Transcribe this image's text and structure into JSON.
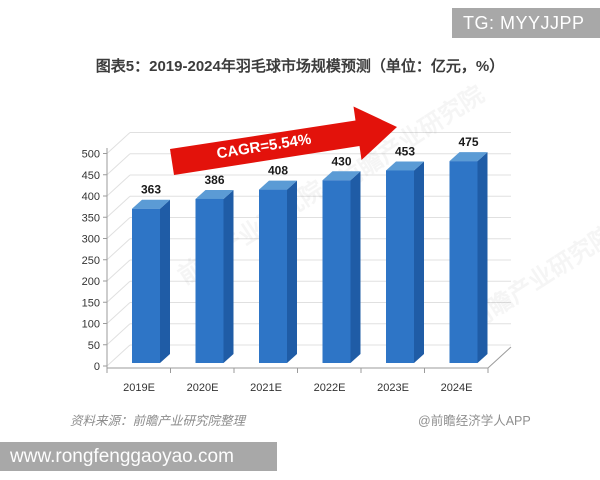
{
  "overlay": {
    "tg_badge": "TG: MYYJJPP",
    "site_banner": "www.rongfenggaoyao.com"
  },
  "header": {
    "title": "图表5：2019-2024年羽毛球市场规模预测（单位：亿元，%）"
  },
  "footer": {
    "source": "资料来源：前瞻产业研究院整理",
    "credit": "@前瞻经济学人APP"
  },
  "chart_data": {
    "type": "bar",
    "style": "3d-column",
    "title": "图表5：2019-2024年羽毛球市场规模预测（单位：亿元，%）",
    "categories": [
      "2019E",
      "2020E",
      "2021E",
      "2022E",
      "2023E",
      "2024E"
    ],
    "values": [
      363,
      386,
      408,
      430,
      453,
      475
    ],
    "annotation": "CAGR=5.54%",
    "xlabel": "",
    "ylabel": "",
    "ylim": [
      0,
      500
    ],
    "ytick_step": 50,
    "grid": true,
    "legend": "none",
    "watermark": "前瞻产业研究院",
    "colors": {
      "bar_front": "#2e75c6",
      "bar_side": "#1f5ca6",
      "bar_top": "#5b9bd5",
      "arrow": "#e3120b",
      "gridline": "#e0e0e0",
      "axis": "#9b9b9b"
    }
  }
}
